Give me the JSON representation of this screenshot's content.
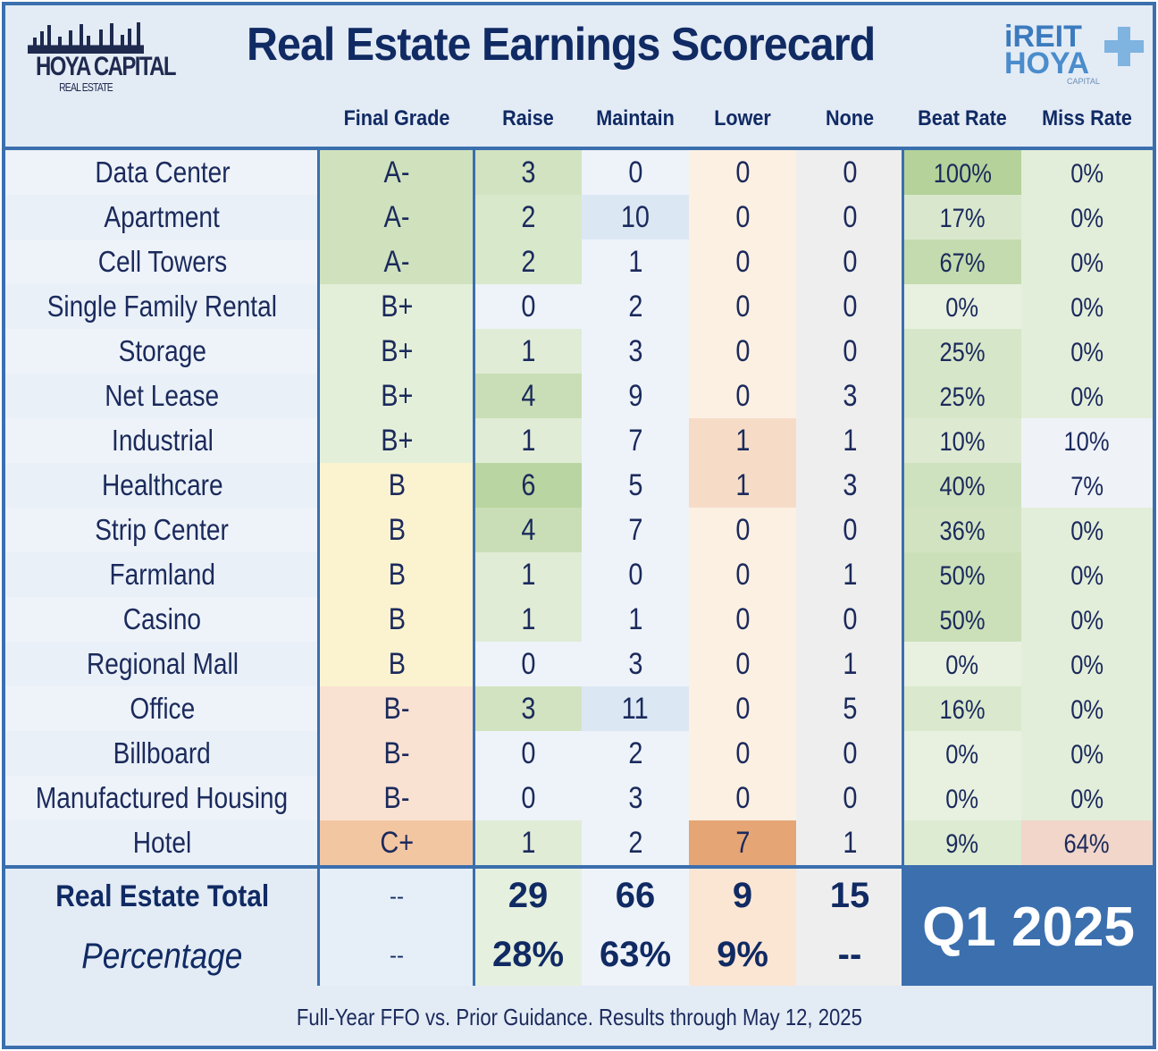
{
  "header": {
    "title": "Real Estate Earnings Scorecard",
    "logo_left": "HOYA CAPITAL REAL ESTATE",
    "logo_right": "iREIT HOYA CAPITAL"
  },
  "columns": [
    "Final Grade",
    "Raise",
    "Maintain",
    "Lower",
    "None",
    "Beat Rate",
    "Miss Rate"
  ],
  "rows": [
    {
      "sector": "Data Center",
      "grade": "A-",
      "raise": 3,
      "maintain": 0,
      "lower": 0,
      "none": 0,
      "beat": "100%",
      "miss": "0%"
    },
    {
      "sector": "Apartment",
      "grade": "A-",
      "raise": 2,
      "maintain": 10,
      "lower": 0,
      "none": 0,
      "beat": "17%",
      "miss": "0%"
    },
    {
      "sector": "Cell Towers",
      "grade": "A-",
      "raise": 2,
      "maintain": 1,
      "lower": 0,
      "none": 0,
      "beat": "67%",
      "miss": "0%"
    },
    {
      "sector": "Single Family Rental",
      "grade": "B+",
      "raise": 0,
      "maintain": 2,
      "lower": 0,
      "none": 0,
      "beat": "0%",
      "miss": "0%"
    },
    {
      "sector": "Storage",
      "grade": "B+",
      "raise": 1,
      "maintain": 3,
      "lower": 0,
      "none": 0,
      "beat": "25%",
      "miss": "0%"
    },
    {
      "sector": "Net Lease",
      "grade": "B+",
      "raise": 4,
      "maintain": 9,
      "lower": 0,
      "none": 3,
      "beat": "25%",
      "miss": "0%"
    },
    {
      "sector": "Industrial",
      "grade": "B+",
      "raise": 1,
      "maintain": 7,
      "lower": 1,
      "none": 1,
      "beat": "10%",
      "miss": "10%"
    },
    {
      "sector": "Healthcare",
      "grade": "B",
      "raise": 6,
      "maintain": 5,
      "lower": 1,
      "none": 3,
      "beat": "40%",
      "miss": "7%"
    },
    {
      "sector": "Strip Center",
      "grade": "B",
      "raise": 4,
      "maintain": 7,
      "lower": 0,
      "none": 0,
      "beat": "36%",
      "miss": "0%"
    },
    {
      "sector": "Farmland",
      "grade": "B",
      "raise": 1,
      "maintain": 0,
      "lower": 0,
      "none": 1,
      "beat": "50%",
      "miss": "0%"
    },
    {
      "sector": "Casino",
      "grade": "B",
      "raise": 1,
      "maintain": 1,
      "lower": 0,
      "none": 0,
      "beat": "50%",
      "miss": "0%"
    },
    {
      "sector": "Regional Mall",
      "grade": "B",
      "raise": 0,
      "maintain": 3,
      "lower": 0,
      "none": 1,
      "beat": "0%",
      "miss": "0%"
    },
    {
      "sector": "Office",
      "grade": "B-",
      "raise": 3,
      "maintain": 11,
      "lower": 0,
      "none": 5,
      "beat": "16%",
      "miss": "0%"
    },
    {
      "sector": "Billboard",
      "grade": "B-",
      "raise": 0,
      "maintain": 2,
      "lower": 0,
      "none": 0,
      "beat": "0%",
      "miss": "0%"
    },
    {
      "sector": "Manufactured Housing",
      "grade": "B-",
      "raise": 0,
      "maintain": 3,
      "lower": 0,
      "none": 0,
      "beat": "0%",
      "miss": "0%"
    },
    {
      "sector": "Hotel",
      "grade": "C+",
      "raise": 1,
      "maintain": 2,
      "lower": 7,
      "none": 1,
      "beat": "9%",
      "miss": "64%"
    }
  ],
  "totals": {
    "label": "Real Estate Total",
    "grade": "--",
    "raise": "29",
    "maintain": "66",
    "lower": "9",
    "none": "15"
  },
  "percentage": {
    "label": "Percentage",
    "grade": "--",
    "raise": "28%",
    "maintain": "63%",
    "lower": "9%",
    "none": "--"
  },
  "period": "Q1 2025",
  "footer": "Full-Year FFO vs. Prior Guidance. Results through May 12, 2025",
  "colors": {
    "border": "#3b6fae",
    "title": "#102a63",
    "grade": {
      "A-": "#cfe2bd",
      "B+": "#e4efd9",
      "B": "#fbf3d0",
      "B-": "#f9e2d2",
      "C+": "#f3c6a2"
    }
  }
}
